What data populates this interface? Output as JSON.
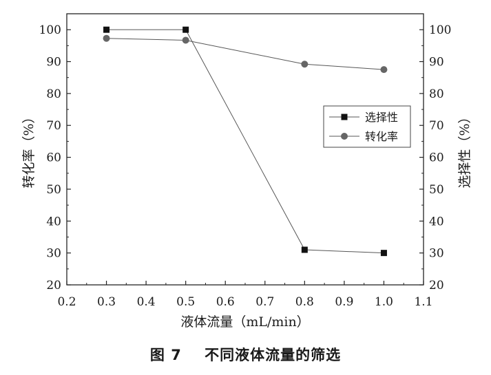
{
  "caption": {
    "figure_label": "图 7",
    "title": "不同液体流量的筛选"
  },
  "chart_data": {
    "type": "line",
    "xlabel": "液体流量（mL/min）",
    "ylabel_left": "转化率（%）",
    "ylabel_right": "选择性（%）",
    "xlim": [
      0.2,
      1.1
    ],
    "ylim": [
      20,
      105
    ],
    "x_ticks": [
      "0.2",
      "0.3",
      "0.4",
      "0.5",
      "0.6",
      "0.7",
      "0.8",
      "0.9",
      "1.0",
      "1.1"
    ],
    "y_ticks": [
      "20",
      "30",
      "40",
      "50",
      "60",
      "70",
      "80",
      "90",
      "100"
    ],
    "legend_position": "right-center",
    "series": [
      {
        "name": "选择性",
        "marker": "square",
        "color": "#111111",
        "x": [
          0.3,
          0.5,
          0.8,
          1.0
        ],
        "values": [
          100,
          100,
          31,
          30
        ]
      },
      {
        "name": "转化率",
        "marker": "circle",
        "color": "#666666",
        "x": [
          0.3,
          0.5,
          0.8,
          1.0
        ],
        "values": [
          97.3,
          96.7,
          89.2,
          87.5
        ]
      }
    ]
  }
}
